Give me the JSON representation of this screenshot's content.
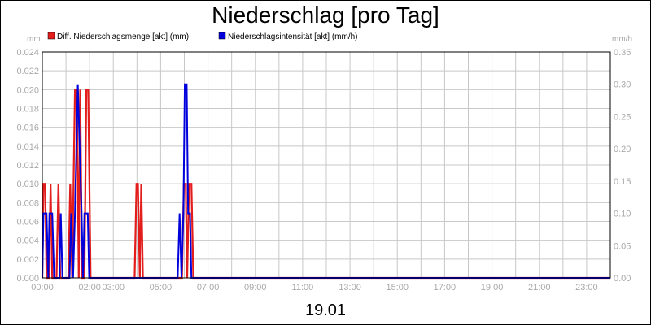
{
  "chart_data": {
    "type": "line",
    "title": "Niederschlag [pro Tag]",
    "date_label": "19.01",
    "y_left": {
      "unit": "mm",
      "min": 0,
      "max": 0.024,
      "ticks": [
        "0.000",
        "0.002",
        "0.004",
        "0.006",
        "0.008",
        "0.010",
        "0.012",
        "0.014",
        "0.016",
        "0.018",
        "0.020",
        "0.022",
        "0.024"
      ]
    },
    "y_right": {
      "unit": "mm/h",
      "min": 0,
      "max": 0.35,
      "ticks": [
        "0.00",
        "0.05",
        "0.10",
        "0.15",
        "0.20",
        "0.25",
        "0.30",
        "0.35"
      ]
    },
    "x_range_hours": [
      0,
      24
    ],
    "x_ticks": [
      {
        "hour": 0,
        "label": "00:00"
      },
      {
        "hour": 2,
        "label": "02:00"
      },
      {
        "hour": 3,
        "label": "03:00"
      },
      {
        "hour": 5,
        "label": "05:00"
      },
      {
        "hour": 7,
        "label": "07:00"
      },
      {
        "hour": 9,
        "label": "09:00"
      },
      {
        "hour": 11,
        "label": "11:00"
      },
      {
        "hour": 13,
        "label": "13:00"
      },
      {
        "hour": 15,
        "label": "15:00"
      },
      {
        "hour": 17,
        "label": "17:00"
      },
      {
        "hour": 19,
        "label": "19:00"
      },
      {
        "hour": 21,
        "label": "21:00"
      },
      {
        "hour": 23,
        "label": "23:00"
      }
    ],
    "grid": true,
    "legend_position": "top-left",
    "series": [
      {
        "name": "Diff. Niederschlagsmenge [akt] (mm)",
        "color": "#e31c1c",
        "axis": "left",
        "points": [
          [
            0.0,
            0
          ],
          [
            0.05,
            0.01
          ],
          [
            0.12,
            0.01
          ],
          [
            0.18,
            0
          ],
          [
            0.28,
            0
          ],
          [
            0.35,
            0.01
          ],
          [
            0.42,
            0
          ],
          [
            0.6,
            0
          ],
          [
            0.68,
            0.01
          ],
          [
            0.76,
            0
          ],
          [
            1.1,
            0
          ],
          [
            1.18,
            0.01
          ],
          [
            1.26,
            0
          ],
          [
            1.38,
            0.02
          ],
          [
            1.46,
            0.02
          ],
          [
            1.54,
            0
          ],
          [
            1.6,
            0.02
          ],
          [
            1.68,
            0
          ],
          [
            1.78,
            0
          ],
          [
            1.86,
            0.02
          ],
          [
            1.94,
            0.02
          ],
          [
            2.04,
            0
          ],
          [
            3.9,
            0
          ],
          [
            3.98,
            0.01
          ],
          [
            4.04,
            0.01
          ],
          [
            4.12,
            0
          ],
          [
            4.18,
            0.01
          ],
          [
            4.25,
            0
          ],
          [
            5.9,
            0
          ],
          [
            5.98,
            0.01
          ],
          [
            6.06,
            0.01
          ],
          [
            6.12,
            0
          ],
          [
            6.2,
            0.01
          ],
          [
            6.3,
            0.01
          ],
          [
            6.38,
            0
          ],
          [
            24.0,
            0
          ]
        ]
      },
      {
        "name": "Niederschlagsintensität [akt] (mm/h)",
        "color": "#0000dd",
        "axis": "right",
        "points": [
          [
            0.0,
            0
          ],
          [
            0.05,
            0.1
          ],
          [
            0.18,
            0.1
          ],
          [
            0.25,
            0
          ],
          [
            0.3,
            0.1
          ],
          [
            0.42,
            0.1
          ],
          [
            0.5,
            0
          ],
          [
            0.72,
            0
          ],
          [
            0.78,
            0.1
          ],
          [
            0.85,
            0
          ],
          [
            1.15,
            0
          ],
          [
            1.22,
            0.1
          ],
          [
            1.3,
            0
          ],
          [
            1.38,
            0.1
          ],
          [
            1.5,
            0.3
          ],
          [
            1.58,
            0.2
          ],
          [
            1.66,
            0.1
          ],
          [
            1.72,
            0
          ],
          [
            1.78,
            0.1
          ],
          [
            1.92,
            0.1
          ],
          [
            1.98,
            0
          ],
          [
            5.72,
            0
          ],
          [
            5.8,
            0.1
          ],
          [
            5.88,
            0
          ],
          [
            5.96,
            0.1
          ],
          [
            6.02,
            0.3
          ],
          [
            6.1,
            0.3
          ],
          [
            6.16,
            0.1
          ],
          [
            6.24,
            0.1
          ],
          [
            6.3,
            0
          ],
          [
            24.0,
            0
          ]
        ]
      }
    ]
  }
}
